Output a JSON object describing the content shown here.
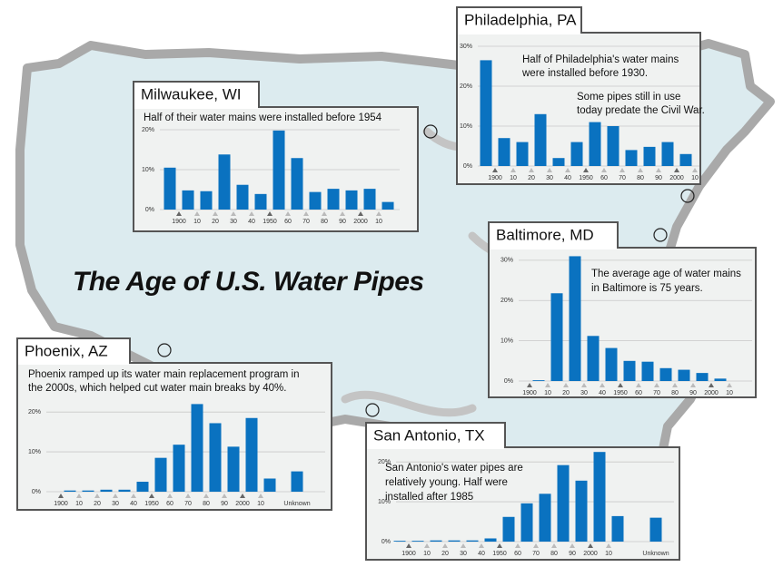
{
  "title": "The Age of U.S. Water Pipes",
  "chart_data": [
    {
      "type": "bar",
      "title": "Milwaukee, WI",
      "color": "#0a72c0",
      "annotations": [
        "Half of their water mains were installed before 1954"
      ],
      "bin_labels": [
        null,
        "1900",
        "10",
        "20",
        "30",
        "40",
        "1950",
        "60",
        "70",
        "80",
        "90",
        "2000",
        "10",
        null
      ],
      "values": [
        10.5,
        4.8,
        4.6,
        13.8,
        6.2,
        3.9,
        19.8,
        12.9,
        4.4,
        5.2,
        4.8,
        5.2,
        1.9
      ],
      "ylim": [
        0,
        20
      ],
      "yticks": [
        {
          "value": 0,
          "label": "0%"
        },
        {
          "value": 10,
          "label": "10%"
        },
        {
          "value": 20,
          "label": "20%"
        }
      ],
      "grid": true
    },
    {
      "type": "bar",
      "title": "Philadelphia, PA",
      "color": "#0a72c0",
      "annotations": [
        "Half of Philadelphia's water mains",
        "were installed before 1930.",
        "Some pipes still in use",
        "today predate the Civil War."
      ],
      "bin_labels": [
        null,
        "1900",
        "10",
        "20",
        "30",
        "40",
        "1950",
        "60",
        "70",
        "80",
        "90",
        "2000",
        "10"
      ],
      "values": [
        26.5,
        7,
        6,
        13,
        2,
        6,
        11,
        10,
        4,
        4.8,
        6,
        3
      ],
      "ylim": [
        0,
        30
      ],
      "yticks": [
        {
          "value": 0,
          "label": "0%"
        },
        {
          "value": 10,
          "label": "10%"
        },
        {
          "value": 20,
          "label": "20%"
        },
        {
          "value": 30,
          "label": "30%"
        }
      ],
      "grid": true
    },
    {
      "type": "bar",
      "title": "Baltimore, MD",
      "color": "#0a72c0",
      "annotations": [
        "The average age of water mains",
        "in Baltimore is 75 years."
      ],
      "bin_labels": [
        "1900",
        "10",
        "20",
        "30",
        "40",
        "1950",
        "60",
        "70",
        "80",
        "90",
        "2000",
        "10"
      ],
      "values": [
        0.2,
        21.8,
        31,
        11.2,
        8.2,
        5,
        4.8,
        3.2,
        2.8,
        2,
        0.6
      ],
      "ylim": [
        0,
        32
      ],
      "yticks": [
        {
          "value": 0,
          "label": "0%"
        },
        {
          "value": 10,
          "label": "10%"
        },
        {
          "value": 20,
          "label": "20%"
        },
        {
          "value": 30,
          "label": "30%"
        }
      ],
      "grid": true
    },
    {
      "type": "bar",
      "title": "Phoenix, AZ",
      "color": "#0a72c0",
      "annotations": [
        "Phoenix ramped up its water main replacement program in",
        "the 2000s, which helped cut water main breaks by 40%."
      ],
      "bin_labels": [
        "1900",
        "10",
        "20",
        "30",
        "40",
        "1950",
        "60",
        "70",
        "80",
        "90",
        "2000",
        "10",
        null
      ],
      "values": [
        0.3,
        0.3,
        0.5,
        0.5,
        2.5,
        8.5,
        11.8,
        22,
        17.2,
        11.3,
        18.5,
        3.3
      ],
      "unknown_label": "Unknown",
      "unknown_value": 5.1,
      "ylim": [
        0,
        23
      ],
      "yticks": [
        {
          "value": 0,
          "label": "0%"
        },
        {
          "value": 10,
          "label": "10%"
        },
        {
          "value": 20,
          "label": "20%"
        }
      ],
      "grid": true
    },
    {
      "type": "bar",
      "title": "San Antonio, TX",
      "color": "#0a72c0",
      "annotations": [
        "San Antonio's water pipes are",
        "relatively young. Half were",
        "installed after 1985"
      ],
      "bin_labels": [
        null,
        "1900",
        "10",
        "20",
        "30",
        "40",
        "1950",
        "60",
        "70",
        "80",
        "90",
        "2000",
        "10",
        null
      ],
      "values": [
        0.2,
        0.2,
        0.3,
        0.3,
        0.3,
        0.8,
        6.2,
        9.6,
        12,
        19.2,
        15.3,
        22.5,
        6.4
      ],
      "unknown_label": "Unknown",
      "unknown_value": 6,
      "ylim": [
        0,
        23
      ],
      "yticks": [
        {
          "value": 0,
          "label": "0%"
        },
        {
          "value": 10,
          "label": "10%"
        },
        {
          "value": 20,
          "label": "20%"
        }
      ],
      "grid": true
    }
  ]
}
